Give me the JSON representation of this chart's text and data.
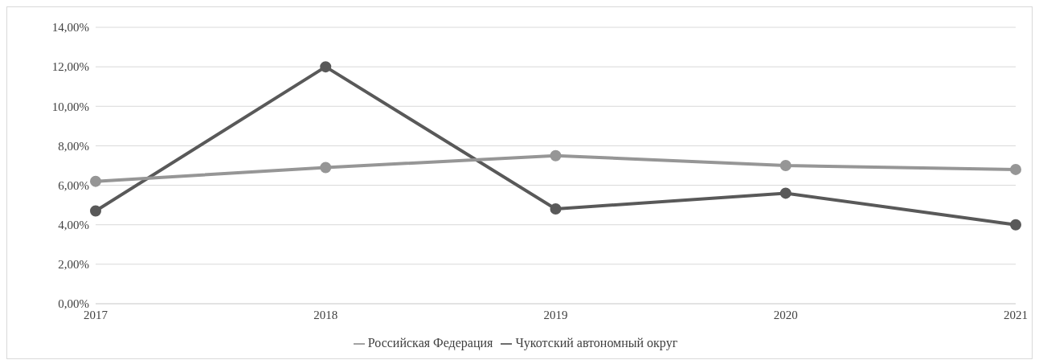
{
  "chart_data": {
    "type": "line",
    "categories": [
      "2017",
      "2018",
      "2019",
      "2020",
      "2021"
    ],
    "series": [
      {
        "name": "Чукотский автономный округ",
        "color": "#595959",
        "values": [
          4.7,
          12.0,
          4.8,
          5.6,
          4.0
        ]
      },
      {
        "name": "Российская Федерация",
        "color": "#969696",
        "values": [
          6.2,
          6.9,
          7.5,
          7.0,
          6.8
        ]
      }
    ],
    "ylim": [
      0,
      14
    ],
    "yticks": [
      {
        "value": 0,
        "label": "0,00%"
      },
      {
        "value": 2,
        "label": "2,00%"
      },
      {
        "value": 4,
        "label": "4,00%"
      },
      {
        "value": 6,
        "label": "6,00%"
      },
      {
        "value": 8,
        "label": "8,00%"
      },
      {
        "value": 10,
        "label": "10,00%"
      },
      {
        "value": 12,
        "label": "12,00%"
      },
      {
        "value": 14,
        "label": "14,00%"
      }
    ],
    "grid": "y",
    "legend": "bottom",
    "marker": "circle",
    "line_style": "solid"
  }
}
